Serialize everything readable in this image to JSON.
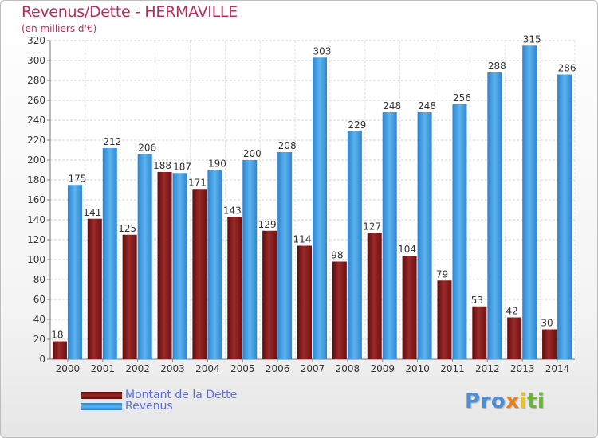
{
  "chart_data": {
    "type": "bar",
    "title": "Revenus/Dette - HERMAVILLE",
    "subtitle": "(en milliers d'€)",
    "categories": [
      "2000",
      "2001",
      "2002",
      "2003",
      "2004",
      "2005",
      "2006",
      "2007",
      "2008",
      "2009",
      "2010",
      "2011",
      "2012",
      "2013",
      "2014"
    ],
    "series": [
      {
        "name": "Montant de la Dette",
        "color": "#8b1a1a",
        "values": [
          18,
          141,
          125,
          188,
          171,
          143,
          129,
          114,
          98,
          127,
          104,
          79,
          53,
          42,
          30
        ]
      },
      {
        "name": "Revenus",
        "color": "#3a9be6",
        "values": [
          175,
          212,
          206,
          187,
          190,
          200,
          208,
          303,
          229,
          248,
          248,
          256,
          288,
          315,
          286
        ]
      }
    ],
    "ylim": [
      0,
      320
    ],
    "yticks": [
      0,
      20,
      40,
      60,
      80,
      100,
      120,
      140,
      160,
      180,
      200,
      220,
      240,
      260,
      280,
      300,
      320
    ],
    "grid": true,
    "legend_position": "bottom-left"
  },
  "brand": {
    "p1": "Pro",
    "p2": "x",
    "p3": "i",
    "p4": "ti"
  }
}
